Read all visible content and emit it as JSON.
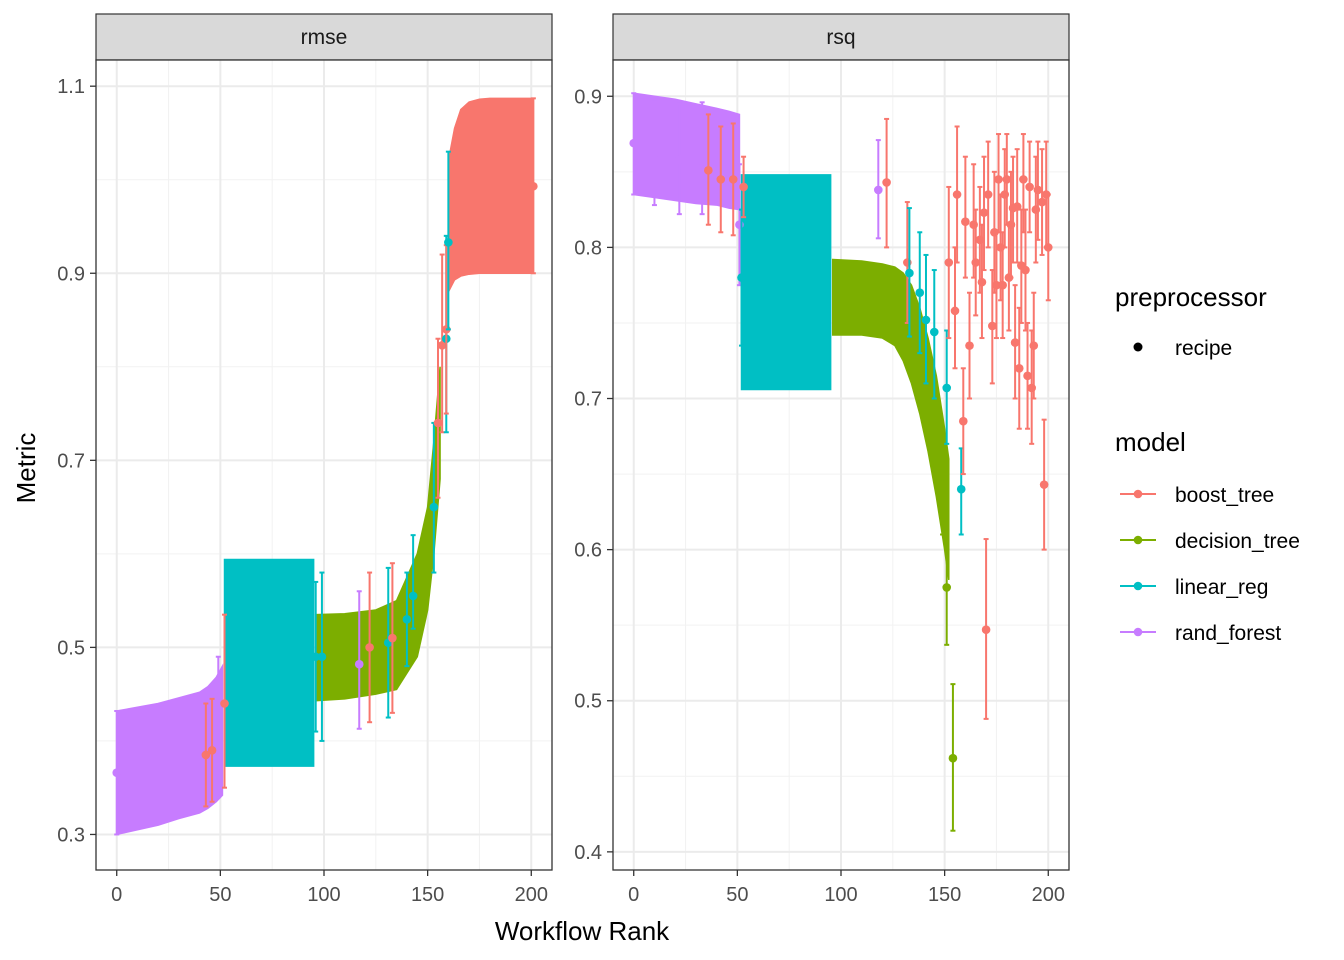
{
  "chart_data": {
    "type": "scatter",
    "xlabel": "Workflow Rank",
    "ylabel": "Metric",
    "grid": true,
    "legend_position": "right",
    "x_ticks": [
      0,
      50,
      100,
      150,
      200
    ],
    "xlim": [
      -10,
      210
    ],
    "panels": [
      {
        "strip": "rmse",
        "ylim": [
          0.262,
          1.128
        ],
        "y_ticks": [
          0.3,
          0.5,
          0.7,
          0.9,
          1.1
        ],
        "y_tick_labels": [
          "0.3",
          "0.5",
          "0.7",
          "0.9",
          "1.1"
        ],
        "bands": [
          {
            "model": "rand_forest",
            "x": [
              0,
              10,
              20,
              30,
              40,
              44,
              48,
              51
            ],
            "lo": [
              0.3,
              0.305,
              0.31,
              0.317,
              0.323,
              0.328,
              0.335,
              0.342
            ],
            "hi": [
              0.432,
              0.436,
              0.44,
              0.446,
              0.452,
              0.458,
              0.468,
              0.48
            ]
          },
          {
            "model": "linear_reg",
            "x": [
              52,
              95
            ],
            "lo": [
              0.373,
              0.373
            ],
            "hi": [
              0.594,
              0.594
            ]
          },
          {
            "model": "decision_tree",
            "x": [
              96,
              110,
              125,
              135,
              145,
              150,
              153,
              156
            ],
            "lo": [
              0.443,
              0.445,
              0.45,
              0.455,
              0.49,
              0.54,
              0.6,
              0.68
            ],
            "hi": [
              0.535,
              0.536,
              0.54,
              0.55,
              0.6,
              0.65,
              0.72,
              0.8
            ]
          },
          {
            "model": "boost_tree",
            "x": [
              160,
              163,
              166,
              170,
              175,
              180,
              190,
              201
            ],
            "lo": [
              0.88,
              0.893,
              0.897,
              0.899,
              0.9,
              0.9,
              0.9,
              0.9
            ],
            "hi": [
              1.02,
              1.055,
              1.075,
              1.083,
              1.086,
              1.087,
              1.087,
              1.087
            ]
          }
        ],
        "points": [
          {
            "model": "rand_forest",
            "x": 0,
            "y": 0.366,
            "lo": 0.3,
            "hi": 0.432
          },
          {
            "model": "boost_tree",
            "x": 43,
            "y": 0.385,
            "lo": 0.33,
            "hi": 0.44
          },
          {
            "model": "boost_tree",
            "x": 46,
            "y": 0.39,
            "lo": 0.335,
            "hi": 0.445
          },
          {
            "model": "rand_forest",
            "x": 49,
            "y": 0.412,
            "lo": 0.34,
            "hi": 0.49
          },
          {
            "model": "boost_tree",
            "x": 52,
            "y": 0.44,
            "lo": 0.35,
            "hi": 0.535
          },
          {
            "model": "linear_reg",
            "x": 96,
            "y": 0.49,
            "lo": 0.41,
            "hi": 0.57
          },
          {
            "model": "linear_reg",
            "x": 99,
            "y": 0.49,
            "lo": 0.4,
            "hi": 0.58
          },
          {
            "model": "rand_forest",
            "x": 117,
            "y": 0.482,
            "lo": 0.413,
            "hi": 0.56
          },
          {
            "model": "boost_tree",
            "x": 122,
            "y": 0.5,
            "lo": 0.42,
            "hi": 0.58
          },
          {
            "model": "linear_reg",
            "x": 131,
            "y": 0.505,
            "lo": 0.425,
            "hi": 0.585
          },
          {
            "model": "boost_tree",
            "x": 133,
            "y": 0.51,
            "lo": 0.43,
            "hi": 0.59
          },
          {
            "model": "linear_reg",
            "x": 140,
            "y": 0.53,
            "lo": 0.48,
            "hi": 0.58
          },
          {
            "model": "linear_reg",
            "x": 143,
            "y": 0.555,
            "lo": 0.52,
            "hi": 0.62
          },
          {
            "model": "linear_reg",
            "x": 153,
            "y": 0.65,
            "lo": 0.58,
            "hi": 0.74
          },
          {
            "model": "boost_tree",
            "x": 155,
            "y": 0.74,
            "lo": 0.66,
            "hi": 0.83
          },
          {
            "model": "boost_tree",
            "x": 157,
            "y": 0.823,
            "lo": 0.73,
            "hi": 0.92
          },
          {
            "model": "linear_reg",
            "x": 159,
            "y": 0.83,
            "lo": 0.73,
            "hi": 0.94
          },
          {
            "model": "boost_tree",
            "x": 159,
            "y": 0.84,
            "lo": 0.75,
            "hi": 0.93
          },
          {
            "model": "linear_reg",
            "x": 160,
            "y": 0.933,
            "lo": 0.84,
            "hi": 1.03
          },
          {
            "model": "boost_tree",
            "x": 201,
            "y": 0.993,
            "lo": 0.9,
            "hi": 1.087
          }
        ]
      },
      {
        "strip": "rsq",
        "ylim": [
          0.388,
          0.924
        ],
        "y_ticks": [
          0.4,
          0.5,
          0.6,
          0.7,
          0.8,
          0.9
        ],
        "y_tick_labels": [
          "0.4",
          "0.5",
          "0.6",
          "0.7",
          "0.8",
          "0.9"
        ],
        "bands": [
          {
            "model": "rand_forest",
            "x": [
              0,
              10,
              20,
              30,
              40,
              46,
              51
            ],
            "lo": [
              0.835,
              0.833,
              0.831,
              0.829,
              0.828,
              0.826,
              0.825
            ],
            "hi": [
              0.902,
              0.9,
              0.898,
              0.895,
              0.892,
              0.89,
              0.888
            ]
          },
          {
            "model": "linear_reg",
            "x": [
              52,
              95
            ],
            "lo": [
              0.706,
              0.706
            ],
            "hi": [
              0.848,
              0.848
            ]
          },
          {
            "model": "decision_tree",
            "x": [
              96,
              110,
              120,
              126,
              130,
              134,
              138,
              142,
              146,
              150,
              152
            ],
            "lo": [
              0.742,
              0.742,
              0.74,
              0.735,
              0.725,
              0.71,
              0.69,
              0.665,
              0.635,
              0.6,
              0.58
            ],
            "hi": [
              0.792,
              0.791,
              0.789,
              0.787,
              0.783,
              0.775,
              0.76,
              0.74,
              0.715,
              0.68,
              0.66
            ]
          }
        ],
        "points": [
          {
            "model": "rand_forest",
            "x": 0,
            "y": 0.869,
            "lo": 0.835,
            "hi": 0.902
          },
          {
            "model": "rand_forest",
            "x": 10,
            "y": 0.862,
            "lo": 0.828,
            "hi": 0.898
          },
          {
            "model": "rand_forest",
            "x": 22,
            "y": 0.858,
            "lo": 0.822,
            "hi": 0.895
          },
          {
            "model": "rand_forest",
            "x": 33,
            "y": 0.857,
            "lo": 0.822,
            "hi": 0.896
          },
          {
            "model": "boost_tree",
            "x": 36,
            "y": 0.851,
            "lo": 0.815,
            "hi": 0.888
          },
          {
            "model": "boost_tree",
            "x": 42,
            "y": 0.845,
            "lo": 0.81,
            "hi": 0.88
          },
          {
            "model": "boost_tree",
            "x": 48,
            "y": 0.845,
            "lo": 0.808,
            "hi": 0.882
          },
          {
            "model": "rand_forest",
            "x": 51,
            "y": 0.815,
            "lo": 0.775,
            "hi": 0.855
          },
          {
            "model": "linear_reg",
            "x": 52,
            "y": 0.78,
            "lo": 0.735,
            "hi": 0.825
          },
          {
            "model": "boost_tree",
            "x": 53,
            "y": 0.84,
            "lo": 0.82,
            "hi": 0.86
          },
          {
            "model": "rand_forest",
            "x": 118,
            "y": 0.838,
            "lo": 0.806,
            "hi": 0.871
          },
          {
            "model": "boost_tree",
            "x": 122,
            "y": 0.843,
            "lo": 0.8,
            "hi": 0.885
          },
          {
            "model": "boost_tree",
            "x": 132,
            "y": 0.79,
            "lo": 0.75,
            "hi": 0.83
          },
          {
            "model": "linear_reg",
            "x": 133,
            "y": 0.783,
            "lo": 0.741,
            "hi": 0.826
          },
          {
            "model": "linear_reg",
            "x": 138,
            "y": 0.77,
            "lo": 0.73,
            "hi": 0.81
          },
          {
            "model": "linear_reg",
            "x": 141,
            "y": 0.752,
            "lo": 0.71,
            "hi": 0.795
          },
          {
            "model": "linear_reg",
            "x": 145,
            "y": 0.744,
            "lo": 0.7,
            "hi": 0.785
          },
          {
            "model": "decision_tree",
            "x": 149,
            "y": 0.643,
            "lo": 0.61,
            "hi": 0.675
          },
          {
            "model": "decision_tree",
            "x": 151,
            "y": 0.575,
            "lo": 0.537,
            "hi": 0.613
          },
          {
            "model": "linear_reg",
            "x": 151,
            "y": 0.707,
            "lo": 0.67,
            "hi": 0.745
          },
          {
            "model": "boost_tree",
            "x": 152,
            "y": 0.79,
            "lo": 0.74,
            "hi": 0.84
          },
          {
            "model": "decision_tree",
            "x": 154,
            "y": 0.462,
            "lo": 0.414,
            "hi": 0.511
          },
          {
            "model": "boost_tree",
            "x": 155,
            "y": 0.758,
            "lo": 0.72,
            "hi": 0.8
          },
          {
            "model": "boost_tree",
            "x": 156,
            "y": 0.835,
            "lo": 0.79,
            "hi": 0.88
          },
          {
            "model": "linear_reg",
            "x": 158,
            "y": 0.64,
            "lo": 0.61,
            "hi": 0.667
          },
          {
            "model": "boost_tree",
            "x": 159,
            "y": 0.685,
            "lo": 0.65,
            "hi": 0.72
          },
          {
            "model": "boost_tree",
            "x": 160,
            "y": 0.817,
            "lo": 0.78,
            "hi": 0.86
          },
          {
            "model": "boost_tree",
            "x": 162,
            "y": 0.735,
            "lo": 0.7,
            "hi": 0.77
          },
          {
            "model": "boost_tree",
            "x": 164,
            "y": 0.815,
            "lo": 0.78,
            "hi": 0.855
          },
          {
            "model": "boost_tree",
            "x": 165,
            "y": 0.79,
            "lo": 0.755,
            "hi": 0.825
          },
          {
            "model": "boost_tree",
            "x": 167,
            "y": 0.805,
            "lo": 0.77,
            "hi": 0.84
          },
          {
            "model": "boost_tree",
            "x": 168,
            "y": 0.777,
            "lo": 0.74,
            "hi": 0.815
          },
          {
            "model": "boost_tree",
            "x": 169,
            "y": 0.823,
            "lo": 0.785,
            "hi": 0.86
          },
          {
            "model": "boost_tree",
            "x": 170,
            "y": 0.547,
            "lo": 0.488,
            "hi": 0.607
          },
          {
            "model": "boost_tree",
            "x": 171,
            "y": 0.835,
            "lo": 0.8,
            "hi": 0.87
          },
          {
            "model": "boost_tree",
            "x": 173,
            "y": 0.748,
            "lo": 0.71,
            "hi": 0.785
          },
          {
            "model": "boost_tree",
            "x": 174,
            "y": 0.81,
            "lo": 0.77,
            "hi": 0.85
          },
          {
            "model": "boost_tree",
            "x": 175,
            "y": 0.775,
            "lo": 0.74,
            "hi": 0.81
          },
          {
            "model": "boost_tree",
            "x": 176,
            "y": 0.845,
            "lo": 0.81,
            "hi": 0.875
          },
          {
            "model": "boost_tree",
            "x": 177,
            "y": 0.8,
            "lo": 0.765,
            "hi": 0.835
          },
          {
            "model": "boost_tree",
            "x": 178,
            "y": 0.775,
            "lo": 0.74,
            "hi": 0.81
          },
          {
            "model": "boost_tree",
            "x": 179,
            "y": 0.835,
            "lo": 0.8,
            "hi": 0.865
          },
          {
            "model": "boost_tree",
            "x": 180,
            "y": 0.845,
            "lo": 0.815,
            "hi": 0.875
          },
          {
            "model": "boost_tree",
            "x": 181,
            "y": 0.78,
            "lo": 0.745,
            "hi": 0.815
          },
          {
            "model": "boost_tree",
            "x": 182,
            "y": 0.815,
            "lo": 0.78,
            "hi": 0.85
          },
          {
            "model": "boost_tree",
            "x": 183,
            "y": 0.826,
            "lo": 0.79,
            "hi": 0.86
          },
          {
            "model": "boost_tree",
            "x": 184,
            "y": 0.737,
            "lo": 0.7,
            "hi": 0.775
          },
          {
            "model": "boost_tree",
            "x": 185,
            "y": 0.827,
            "lo": 0.79,
            "hi": 0.865
          },
          {
            "model": "boost_tree",
            "x": 186,
            "y": 0.72,
            "lo": 0.68,
            "hi": 0.76
          },
          {
            "model": "boost_tree",
            "x": 187,
            "y": 0.788,
            "lo": 0.75,
            "hi": 0.825
          },
          {
            "model": "boost_tree",
            "x": 188,
            "y": 0.845,
            "lo": 0.81,
            "hi": 0.875
          },
          {
            "model": "boost_tree",
            "x": 189,
            "y": 0.785,
            "lo": 0.745,
            "hi": 0.825
          },
          {
            "model": "boost_tree",
            "x": 190,
            "y": 0.715,
            "lo": 0.68,
            "hi": 0.75
          },
          {
            "model": "boost_tree",
            "x": 191,
            "y": 0.84,
            "lo": 0.81,
            "hi": 0.87
          },
          {
            "model": "boost_tree",
            "x": 192,
            "y": 0.707,
            "lo": 0.67,
            "hi": 0.745
          },
          {
            "model": "boost_tree",
            "x": 193,
            "y": 0.735,
            "lo": 0.7,
            "hi": 0.77
          },
          {
            "model": "boost_tree",
            "x": 194,
            "y": 0.825,
            "lo": 0.79,
            "hi": 0.86
          },
          {
            "model": "boost_tree",
            "x": 195,
            "y": 0.838,
            "lo": 0.805,
            "hi": 0.87
          },
          {
            "model": "boost_tree",
            "x": 197,
            "y": 0.83,
            "lo": 0.795,
            "hi": 0.865
          },
          {
            "model": "boost_tree",
            "x": 198,
            "y": 0.643,
            "lo": 0.6,
            "hi": 0.686
          },
          {
            "model": "boost_tree",
            "x": 199,
            "y": 0.835,
            "lo": 0.8,
            "hi": 0.87
          },
          {
            "model": "boost_tree",
            "x": 200,
            "y": 0.8,
            "lo": 0.765,
            "hi": 0.835
          }
        ]
      }
    ],
    "legend": {
      "preprocessor_title": "preprocessor",
      "preprocessor_items": [
        "recipe"
      ],
      "model_title": "model",
      "model_items": [
        {
          "name": "boost_tree",
          "color": "#F8766D"
        },
        {
          "name": "decision_tree",
          "color": "#7CAE00"
        },
        {
          "name": "linear_reg",
          "color": "#00BFC4"
        },
        {
          "name": "rand_forest",
          "color": "#C77CFF"
        }
      ]
    }
  }
}
